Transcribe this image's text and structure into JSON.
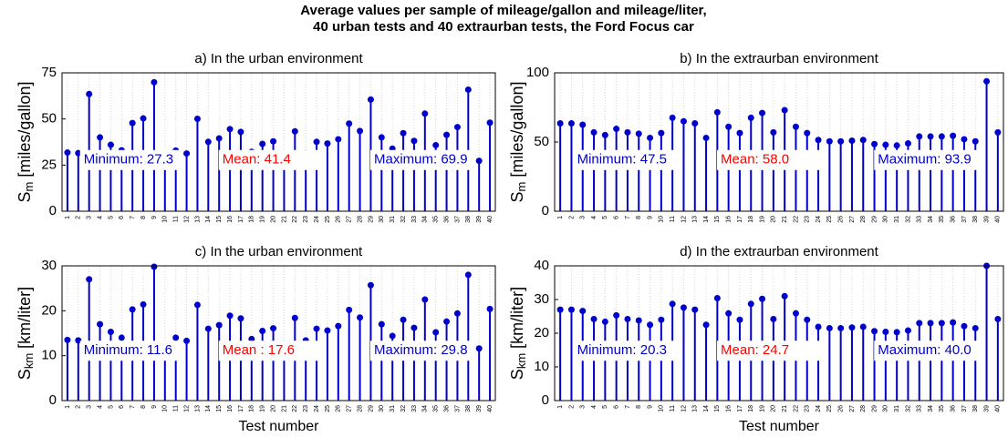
{
  "title": [
    "Average values per sample of mileage/gallon and mileage/liter,",
    "40 urban tests and 40 extraurban tests, the Ford Focus car"
  ],
  "chart_data": [
    {
      "type": "stem",
      "title": "a) In the urban environment",
      "ylabel": {
        "main": "S",
        "sub": "m",
        "unit": "[miles/gallon]"
      },
      "categories": [
        "1",
        "2",
        "3",
        "4",
        "5",
        "6",
        "7",
        "8",
        "9",
        "10",
        "11",
        "12",
        "13",
        "14",
        "15",
        "16",
        "17",
        "18",
        "19",
        "20",
        "21",
        "22",
        "23",
        "24",
        "25",
        "26",
        "27",
        "28",
        "29",
        "30",
        "31",
        "32",
        "33",
        "34",
        "35",
        "36",
        "37",
        "38",
        "39",
        "40"
      ],
      "values": [
        31.8,
        31.5,
        63.5,
        40,
        36,
        33,
        47.8,
        50.3,
        69.9,
        29.6,
        32.9,
        31.3,
        50.1,
        37.6,
        39.5,
        44.5,
        43,
        32.2,
        36.5,
        37.9,
        29.4,
        43.3,
        31.5,
        37.6,
        36.7,
        39,
        47.5,
        43.5,
        60.5,
        40,
        33.9,
        42.3,
        38.1,
        52.9,
        35.8,
        41.4,
        45.6,
        65.9,
        27.3,
        48
      ],
      "color": "#0000cc",
      "ylim": [
        0,
        75
      ],
      "yticks": [
        0,
        25,
        50,
        75
      ],
      "grid": "x",
      "annotations": [
        {
          "text": "Minimum: 27.3",
          "color": "#0000cc"
        },
        {
          "text": "Mean: 41.4",
          "color": "#ff0000"
        },
        {
          "text": "Maximum: 69.9",
          "color": "#0000cc"
        }
      ]
    },
    {
      "type": "stem",
      "title": "b) In the extraurban environment",
      "ylabel": {
        "main": "S",
        "sub": "m",
        "unit": "[miles/gallon]"
      },
      "categories": [
        "1",
        "2",
        "3",
        "4",
        "5",
        "6",
        "7",
        "8",
        "9",
        "10",
        "11",
        "12",
        "13",
        "14",
        "15",
        "16",
        "17",
        "18",
        "19",
        "20",
        "21",
        "22",
        "23",
        "24",
        "25",
        "26",
        "27",
        "28",
        "29",
        "30",
        "31",
        "32",
        "33",
        "34",
        "35",
        "36",
        "37",
        "38",
        "39",
        "40"
      ],
      "values": [
        63.5,
        63.5,
        62.5,
        57,
        55,
        59.5,
        57,
        56,
        53,
        56.5,
        67.5,
        65,
        63.5,
        53,
        71.5,
        61,
        56.5,
        67.5,
        71,
        57,
        73,
        61,
        56.5,
        51.5,
        50.5,
        50.5,
        51,
        51.5,
        48.5,
        48,
        47.5,
        49,
        54,
        54,
        54,
        54.5,
        52,
        50.5,
        93.9,
        57
      ],
      "color": "#0000cc",
      "ylim": [
        0,
        100
      ],
      "yticks": [
        0,
        50,
        100
      ],
      "grid": "x",
      "annotations": [
        {
          "text": "Minimum: 47.5",
          "color": "#0000cc"
        },
        {
          "text": "Mean: 58.0",
          "color": "#ff0000"
        },
        {
          "text": "Maximum: 93.9",
          "color": "#0000cc"
        }
      ]
    },
    {
      "type": "stem",
      "title": "c) In the urban environment",
      "xlabel": "Test number",
      "ylabel": {
        "main": "S",
        "sub": "km",
        "unit": "[km/liter]"
      },
      "categories": [
        "1",
        "2",
        "3",
        "4",
        "5",
        "6",
        "7",
        "8",
        "9",
        "10",
        "11",
        "12",
        "13",
        "14",
        "15",
        "16",
        "17",
        "18",
        "19",
        "20",
        "21",
        "22",
        "23",
        "24",
        "25",
        "26",
        "27",
        "28",
        "29",
        "30",
        "31",
        "32",
        "33",
        "34",
        "35",
        "36",
        "37",
        "38",
        "39",
        "40"
      ],
      "values": [
        13.5,
        13.4,
        27,
        17,
        15.3,
        14,
        20.3,
        21.4,
        29.8,
        12.6,
        14,
        13.3,
        21.3,
        16,
        16.8,
        18.9,
        18.3,
        13.7,
        15.5,
        16.1,
        12.5,
        18.4,
        13.4,
        16,
        15.6,
        16.6,
        20.2,
        18.5,
        25.7,
        17,
        14.4,
        18,
        16.2,
        22.5,
        15.2,
        17.6,
        19.4,
        28,
        11.6,
        20.4
      ],
      "color": "#0000cc",
      "ylim": [
        0,
        30
      ],
      "yticks": [
        0,
        10,
        20,
        30
      ],
      "grid": "x",
      "annotations": [
        {
          "text": "Minimum: 11.6",
          "color": "#0000cc"
        },
        {
          "text": "Mean : 17.6",
          "color": "#ff0000"
        },
        {
          "text": "Maximum: 29.8",
          "color": "#0000cc"
        }
      ]
    },
    {
      "type": "stem",
      "title": "d) In the extraurban environment",
      "xlabel": "Test number",
      "ylabel": {
        "main": "S",
        "sub": "km",
        "unit": "[km/liter]"
      },
      "categories": [
        "1",
        "2",
        "3",
        "4",
        "5",
        "6",
        "7",
        "8",
        "9",
        "10",
        "11",
        "12",
        "13",
        "14",
        "15",
        "16",
        "17",
        "18",
        "19",
        "20",
        "21",
        "22",
        "23",
        "24",
        "25",
        "26",
        "27",
        "28",
        "29",
        "30",
        "31",
        "32",
        "33",
        "34",
        "35",
        "36",
        "37",
        "38",
        "39",
        "40"
      ],
      "values": [
        27,
        27,
        26.6,
        24.2,
        23.4,
        25.3,
        24.2,
        23.8,
        22.5,
        24,
        28.7,
        27.6,
        27,
        22.5,
        30.4,
        25.9,
        24,
        28.7,
        30.2,
        24.2,
        31,
        25.9,
        24,
        21.9,
        21.5,
        21.5,
        21.7,
        21.9,
        20.6,
        20.4,
        20.3,
        20.8,
        23,
        23,
        23,
        23.2,
        22.1,
        21.5,
        40,
        24.2
      ],
      "color": "#0000cc",
      "ylim": [
        0,
        40
      ],
      "yticks": [
        0,
        10,
        20,
        30,
        40
      ],
      "grid": "x",
      "annotations": [
        {
          "text": "Minimum: 20.3",
          "color": "#0000cc"
        },
        {
          "text": "Mean: 24.7",
          "color": "#ff0000"
        },
        {
          "text": "Maximum: 40.0",
          "color": "#0000cc"
        }
      ]
    }
  ]
}
